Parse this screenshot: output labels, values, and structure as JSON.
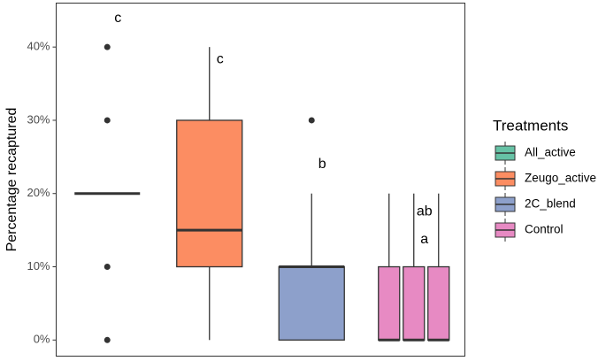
{
  "chart_data": {
    "type": "box",
    "y_label": "Percentage recaptured",
    "legend_title": "Treatments",
    "ylim": [
      -2.2,
      46
    ],
    "yticks": [
      {
        "value": 0,
        "label": "0%"
      },
      {
        "value": 10,
        "label": "10%"
      },
      {
        "value": 20,
        "label": "20%"
      },
      {
        "value": 30,
        "label": "30%"
      },
      {
        "value": 40,
        "label": "40%"
      }
    ],
    "groups": [
      {
        "name": "All_active",
        "color": "#66c2a5",
        "boxes": [
          {
            "min": 20,
            "q1": 20,
            "median": 20,
            "q3": 20,
            "max": 20,
            "outliers": [
              0,
              10,
              30,
              40
            ]
          }
        ],
        "labels": [
          {
            "text": "c",
            "y": 43.9
          }
        ]
      },
      {
        "name": "Zeugo_active",
        "color": "#fc8d62",
        "boxes": [
          {
            "min": 0,
            "q1": 10,
            "median": 15,
            "q3": 30,
            "max": 40,
            "outliers": []
          }
        ],
        "labels": [
          {
            "text": "c",
            "y": 38.3
          }
        ]
      },
      {
        "name": "2C_blend",
        "color": "#8da0cb",
        "boxes": [
          {
            "min": 0,
            "q1": 0,
            "median": 10,
            "q3": 10,
            "max": 20,
            "outliers": [
              30
            ]
          }
        ],
        "labels": [
          {
            "text": "b",
            "y": 24
          }
        ]
      },
      {
        "name": "Control",
        "color": "#e78ac3",
        "boxes": [
          {
            "min": 0,
            "q1": 0,
            "median": 0,
            "q3": 10,
            "max": 20,
            "outliers": []
          },
          {
            "min": 0,
            "q1": 0,
            "median": 0,
            "q3": 10,
            "max": 20,
            "outliers": []
          },
          {
            "min": 0,
            "q1": 0,
            "median": 0,
            "q3": 10,
            "max": 20,
            "outliers": []
          }
        ],
        "labels": [
          {
            "text": "ab",
            "y": 17.5
          },
          {
            "text": "a",
            "y": 13.7
          }
        ]
      }
    ]
  }
}
